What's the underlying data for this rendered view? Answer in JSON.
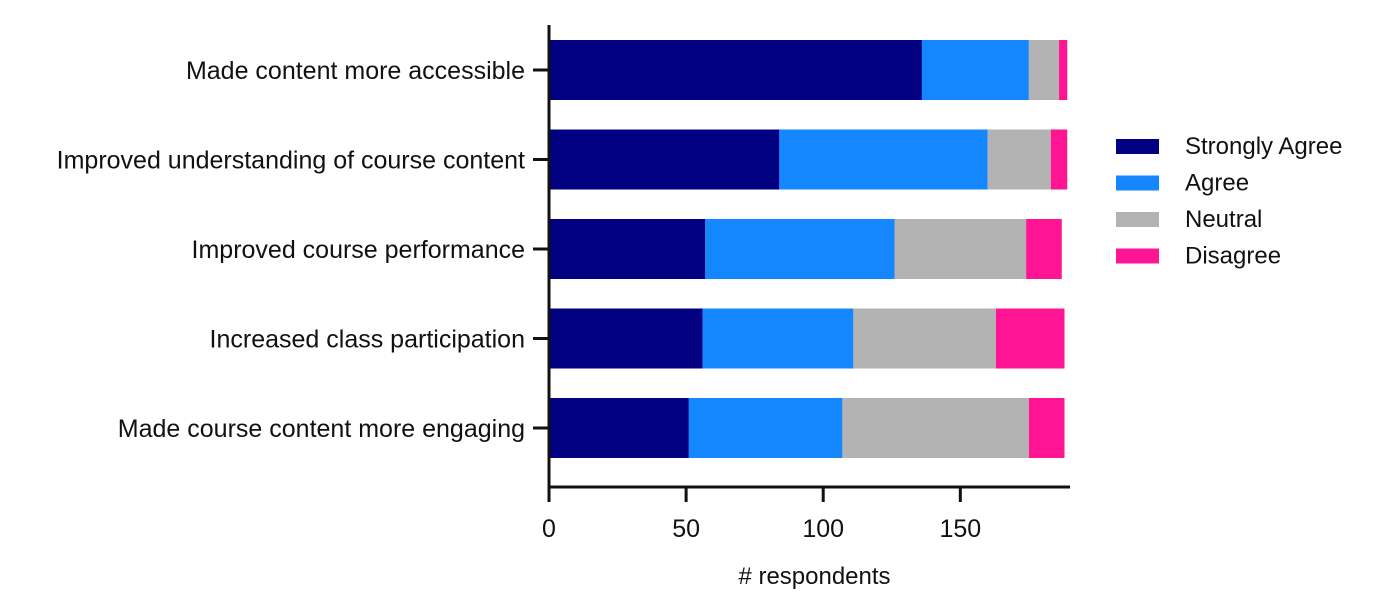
{
  "chart_data": {
    "type": "bar",
    "orientation": "horizontal",
    "stacked": true,
    "categories": [
      "Made content more accessible",
      "Improved understanding of course content",
      "Improved course performance",
      "Increased class participation",
      "Made course content more engaging"
    ],
    "series": [
      {
        "name": "Strongly Agree",
        "color": "#000080",
        "values": [
          136,
          84,
          57,
          56,
          51
        ]
      },
      {
        "name": "Agree",
        "color": "#1487ff",
        "values": [
          39,
          76,
          69,
          55,
          56
        ]
      },
      {
        "name": "Neutral",
        "color": "#b3b3b3",
        "values": [
          11,
          23,
          48,
          52,
          68
        ]
      },
      {
        "name": "Disagree",
        "color": "#ff1493",
        "values": [
          3,
          6,
          13,
          25,
          13
        ]
      }
    ],
    "title": "",
    "xlabel": "# respondents",
    "ylabel": "",
    "xlim": [
      0,
      190
    ],
    "xticks": [
      0,
      50,
      100,
      150
    ],
    "grid": false,
    "legend_position": "right"
  }
}
